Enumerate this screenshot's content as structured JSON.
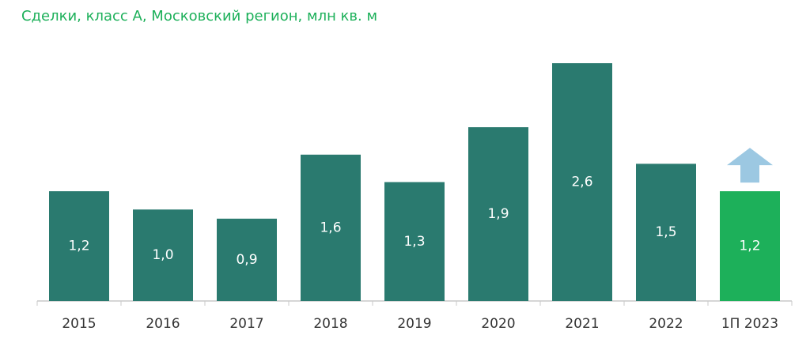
{
  "chart_data": {
    "type": "bar",
    "title": "Сделки, класс А, Московский регион, млн кв. м",
    "categories": [
      "2015",
      "2016",
      "2017",
      "2018",
      "2019",
      "2020",
      "2021",
      "2022",
      "1П 2023"
    ],
    "values": [
      1.2,
      1.0,
      0.9,
      1.6,
      1.3,
      1.9,
      2.6,
      1.5,
      1.2
    ],
    "value_labels": [
      "1,2",
      "1,0",
      "0,9",
      "1,6",
      "1,3",
      "1,9",
      "2,6",
      "1,5",
      "1,2"
    ],
    "xlabel": "",
    "ylabel": "",
    "ylim": [
      0,
      2.6
    ],
    "grid": false,
    "colors": {
      "bar": "#2a7a6f",
      "highlight_bar": "#1db05a",
      "highlight_index": 8,
      "arrow": "#9cc8e2",
      "axis": "#c8c8c8",
      "title": "#1db05a"
    },
    "annotations": [
      {
        "type": "up-arrow",
        "category": "1П 2023",
        "icon": "arrow-up-icon"
      }
    ]
  }
}
